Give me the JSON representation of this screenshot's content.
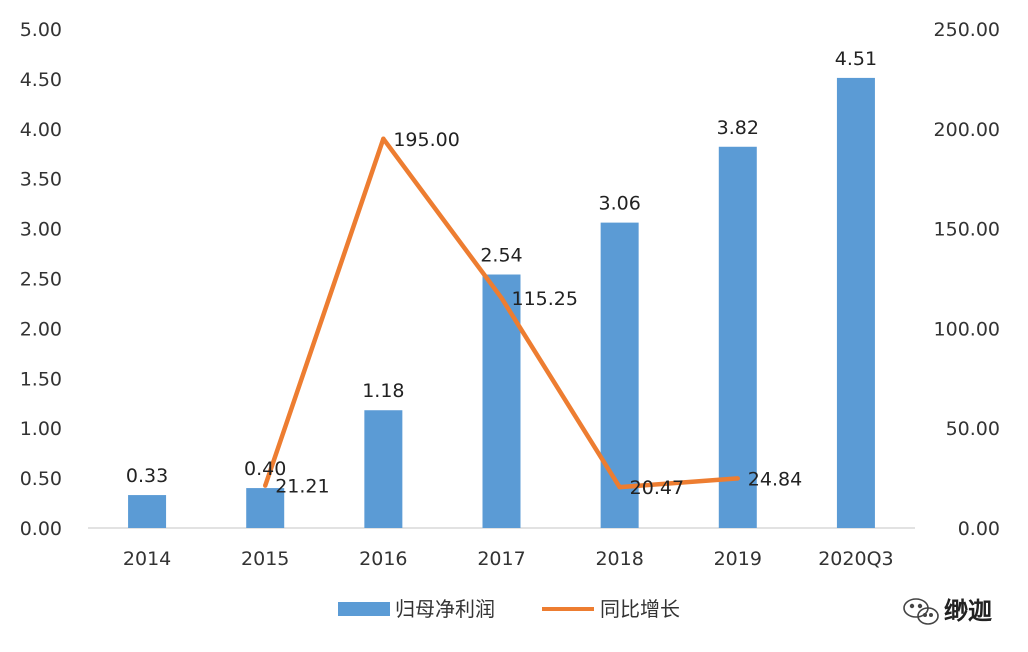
{
  "chart_data": {
    "type": "bar",
    "categories": [
      "2014",
      "2015",
      "2016",
      "2017",
      "2018",
      "2019",
      "2020Q3"
    ],
    "series": [
      {
        "name": "归母净利润",
        "kind": "bar",
        "axis": "left",
        "values": [
          0.33,
          0.4,
          1.18,
          2.54,
          3.06,
          3.82,
          4.51
        ],
        "labels": [
          "0.33",
          "0.40",
          "1.18",
          "2.54",
          "3.06",
          "3.82",
          "4.51"
        ],
        "color": "#5B9BD5"
      },
      {
        "name": "同比增长",
        "kind": "line",
        "axis": "right",
        "values": [
          null,
          21.21,
          195.0,
          115.25,
          20.47,
          24.84,
          null
        ],
        "labels": [
          null,
          "21.21",
          "195.00",
          "115.25",
          "20.47",
          "24.84",
          null
        ],
        "color": "#ED7D31"
      }
    ],
    "y_left": {
      "ylim": [
        0,
        5
      ],
      "ticks": [
        "0.00",
        "0.50",
        "1.00",
        "1.50",
        "2.00",
        "2.50",
        "3.00",
        "3.50",
        "4.00",
        "4.50",
        "5.00"
      ]
    },
    "y_right": {
      "ylim": [
        0,
        250
      ],
      "ticks": [
        "0.00",
        "50.00",
        "100.00",
        "150.00",
        "200.00",
        "250.00"
      ]
    },
    "title": "",
    "xlabel": "",
    "ylabel": "",
    "grid": false,
    "legend_position": "bottom"
  },
  "watermark": {
    "text": "缈迦",
    "icon": "wechat-icon"
  }
}
